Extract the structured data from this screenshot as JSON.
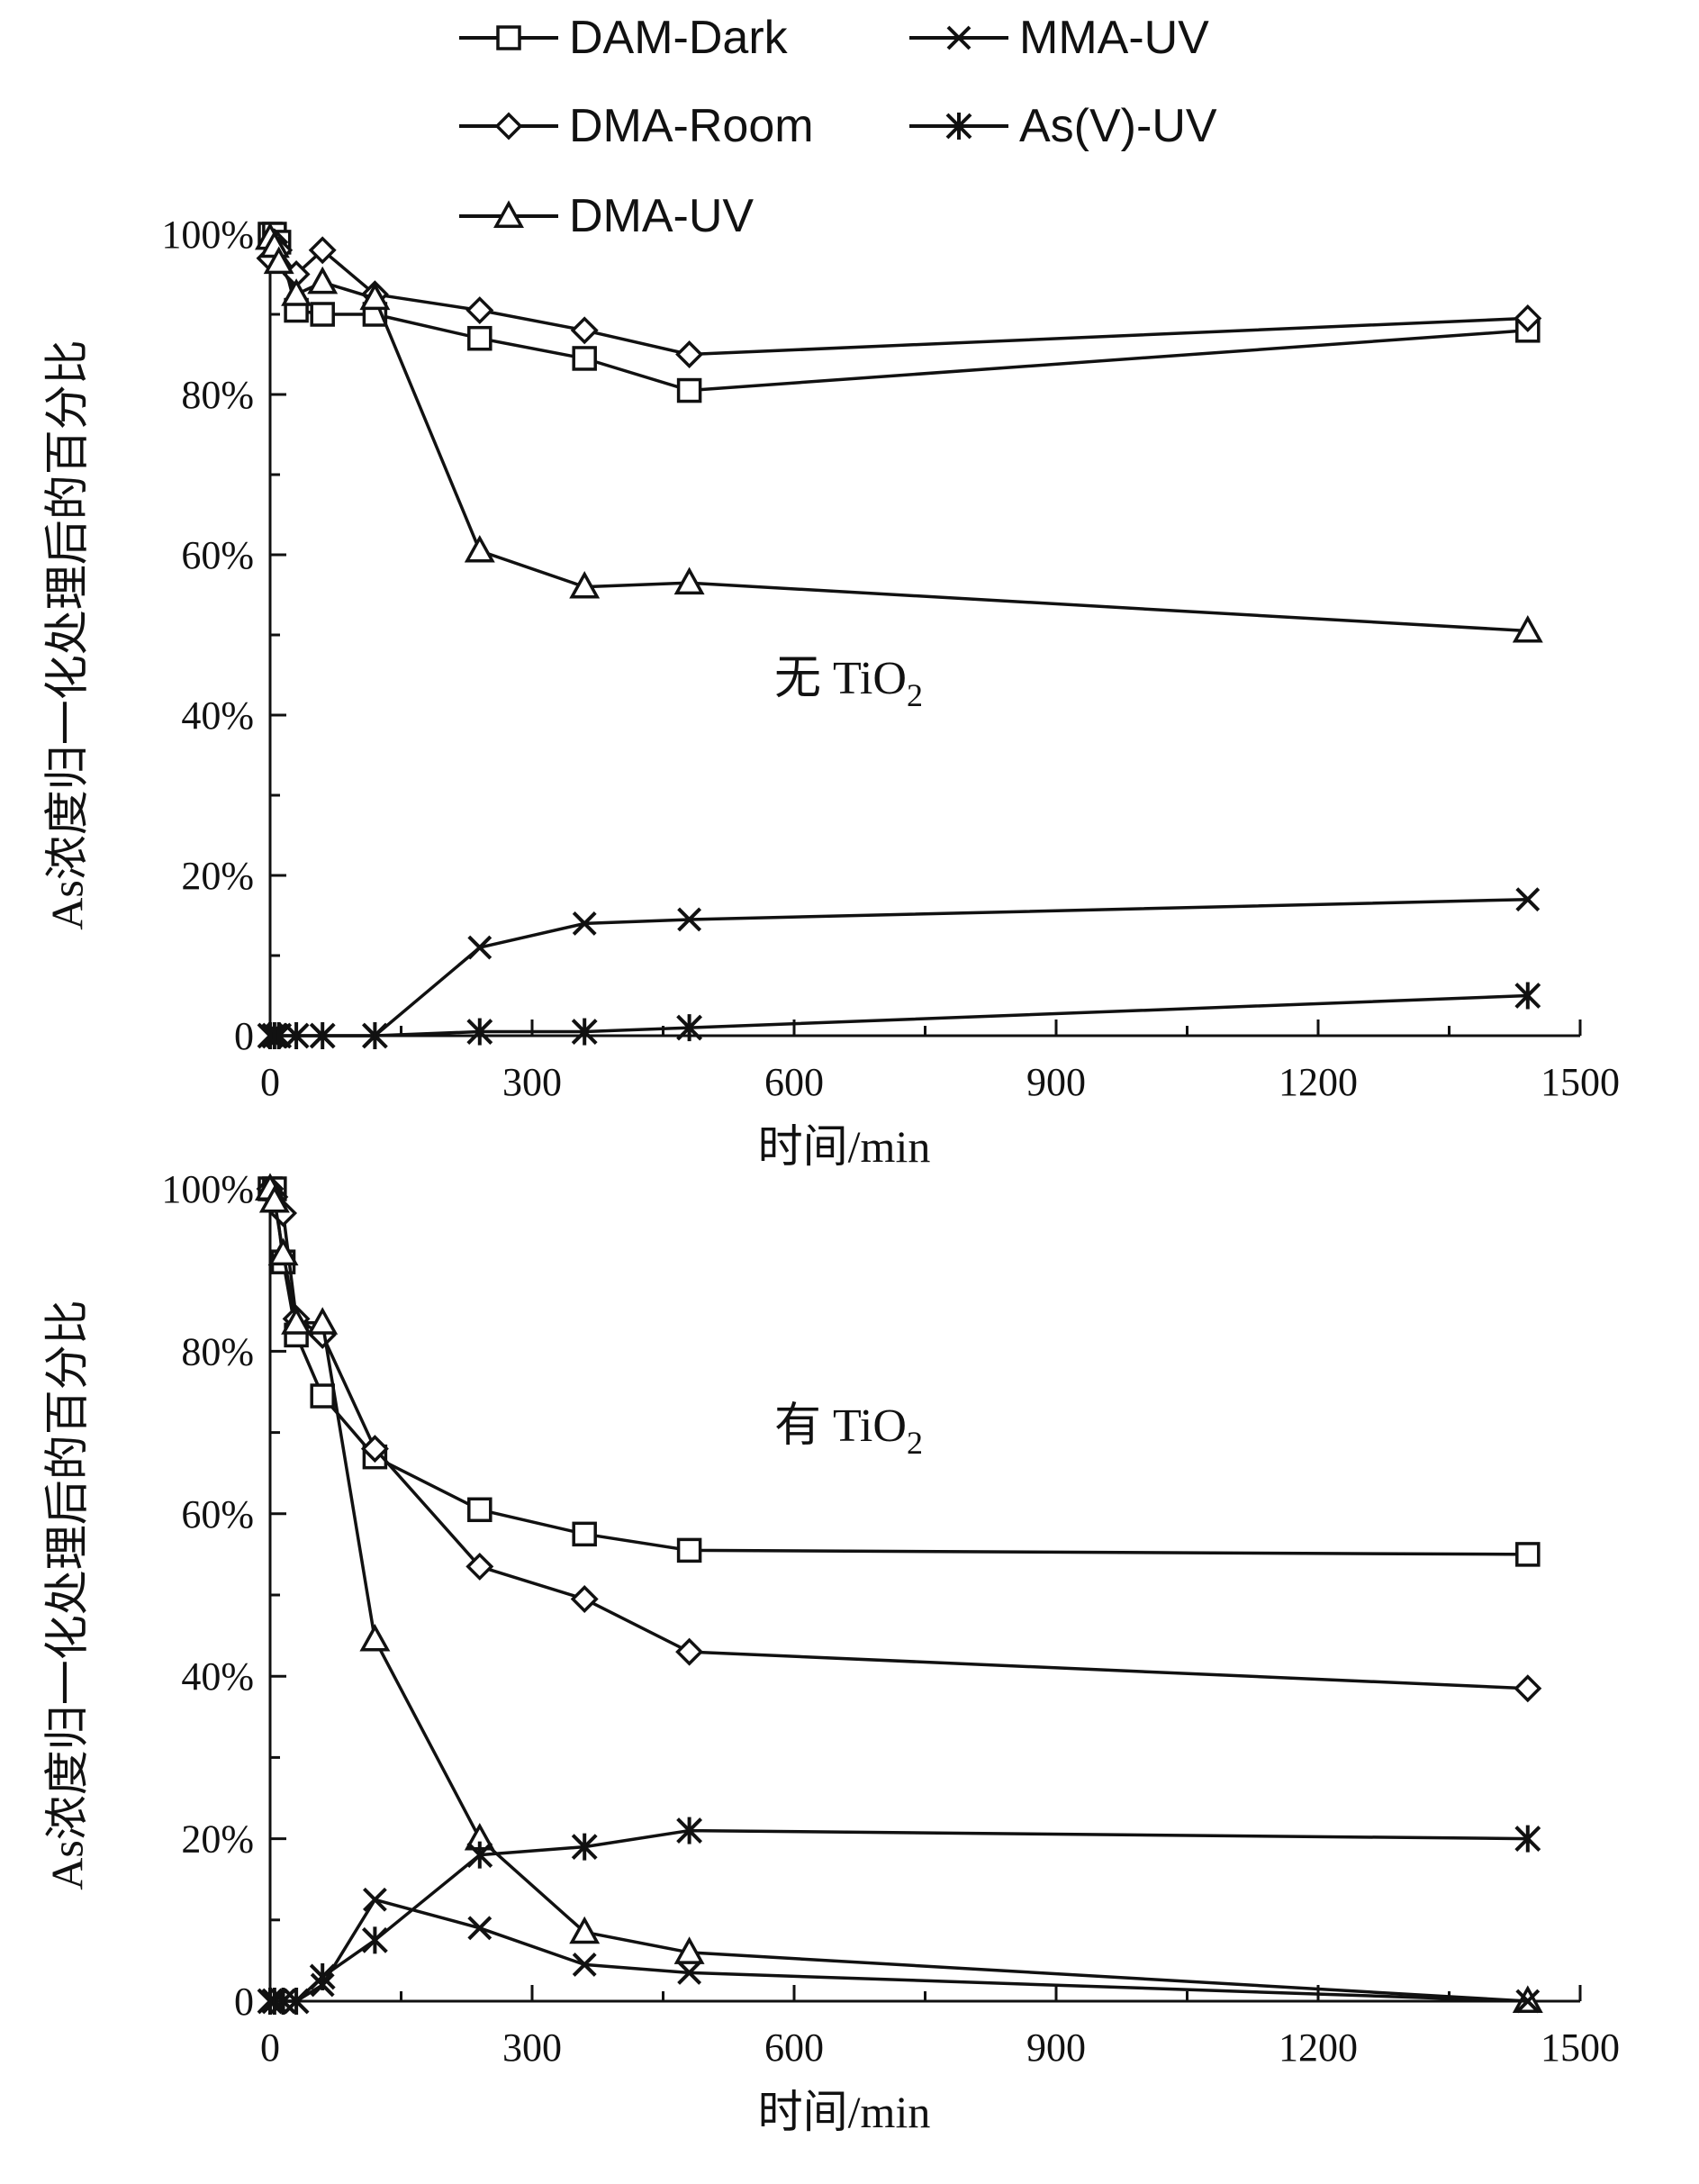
{
  "legend": {
    "items": [
      {
        "label": "DAM-Dark",
        "marker": "square"
      },
      {
        "label": "MMA-UV",
        "marker": "x"
      },
      {
        "label": "DMA-Room",
        "marker": "diamond"
      },
      {
        "label": "As(V)-UV",
        "marker": "asterisk"
      },
      {
        "label": "DMA-UV",
        "marker": "triangle"
      }
    ]
  },
  "colors": {
    "ink": "#111111",
    "background": "#ffffff"
  },
  "chart_data": [
    {
      "type": "line",
      "annotation": {
        "main": "无 TiO",
        "sub": "2"
      },
      "xlabel": "时间/min",
      "ylabel": "As浓度归一化处理后的百分比",
      "xlim": [
        0,
        1500
      ],
      "ylim": [
        0,
        1
      ],
      "x_ticks": [
        0,
        300,
        600,
        900,
        1200,
        1500
      ],
      "x_tick_labels": [
        "0",
        "300",
        "600",
        "900",
        "1200",
        "1500"
      ],
      "y_ticks": [
        0,
        0.2,
        0.4,
        0.6,
        0.8,
        1.0
      ],
      "y_tick_labels": [
        "0",
        "20%",
        "40%",
        "60%",
        "80%",
        "100%"
      ],
      "grid": false,
      "series": [
        {
          "name": "DAM-Dark",
          "marker": "square",
          "x": [
            0,
            5,
            10,
            30,
            60,
            120,
            240,
            360,
            480,
            1440
          ],
          "y": [
            1.0,
            1.0,
            0.99,
            0.905,
            0.9,
            0.9,
            0.87,
            0.845,
            0.805,
            0.88
          ]
        },
        {
          "name": "DMA-Room",
          "marker": "diamond",
          "x": [
            0,
            5,
            10,
            30,
            60,
            120,
            240,
            360,
            480,
            1440
          ],
          "y": [
            0.97,
            0.99,
            0.98,
            0.95,
            0.98,
            0.925,
            0.905,
            0.88,
            0.85,
            0.895
          ]
        },
        {
          "name": "DMA-UV",
          "marker": "triangle",
          "x": [
            0,
            5,
            10,
            30,
            60,
            120,
            240,
            360,
            480,
            1440
          ],
          "y": [
            0.995,
            0.985,
            0.965,
            0.925,
            0.94,
            0.92,
            0.605,
            0.56,
            0.565,
            0.505
          ]
        },
        {
          "name": "MMA-UV",
          "marker": "x",
          "x": [
            0,
            5,
            10,
            30,
            60,
            120,
            240,
            360,
            480,
            1440
          ],
          "y": [
            0,
            0,
            0,
            0,
            0,
            0,
            0.11,
            0.14,
            0.145,
            0.17
          ]
        },
        {
          "name": "As(V)-UV",
          "marker": "asterisk",
          "x": [
            0,
            5,
            10,
            30,
            60,
            120,
            240,
            360,
            480,
            1440
          ],
          "y": [
            0,
            0,
            0,
            0,
            0,
            0,
            0.005,
            0.005,
            0.01,
            0.05
          ]
        }
      ]
    },
    {
      "type": "line",
      "annotation": {
        "main": "有 TiO",
        "sub": "2"
      },
      "xlabel": "时间/min",
      "ylabel": "As浓度归一化处理后的百分比",
      "xlim": [
        0,
        1500
      ],
      "ylim": [
        0,
        1
      ],
      "x_ticks": [
        0,
        300,
        600,
        900,
        1200,
        1500
      ],
      "x_tick_labels": [
        "0",
        "300",
        "600",
        "900",
        "1200",
        "1500"
      ],
      "y_ticks": [
        0,
        0.2,
        0.4,
        0.6,
        0.8,
        1.0
      ],
      "y_tick_labels": [
        "0",
        "20%",
        "40%",
        "60%",
        "80%",
        "100%"
      ],
      "grid": false,
      "series": [
        {
          "name": "DAM-Dark",
          "marker": "square",
          "x": [
            0,
            5,
            15,
            30,
            60,
            120,
            240,
            360,
            480,
            1440
          ],
          "y": [
            1.0,
            1.0,
            0.91,
            0.82,
            0.745,
            0.67,
            0.605,
            0.575,
            0.555,
            0.55
          ]
        },
        {
          "name": "DMA-Room",
          "marker": "diamond",
          "x": [
            0,
            5,
            15,
            30,
            60,
            120,
            240,
            360,
            480,
            1440
          ],
          "y": [
            1.0,
            0.99,
            0.97,
            0.84,
            0.82,
            0.68,
            0.535,
            0.495,
            0.43,
            0.385
          ]
        },
        {
          "name": "DMA-UV",
          "marker": "triangle",
          "x": [
            0,
            5,
            15,
            30,
            60,
            120,
            240,
            360,
            480,
            1440
          ],
          "y": [
            1.0,
            0.985,
            0.92,
            0.835,
            0.835,
            0.445,
            0.2,
            0.085,
            0.06,
            0.0
          ]
        },
        {
          "name": "MMA-UV",
          "marker": "x",
          "x": [
            0,
            5,
            15,
            30,
            60,
            120,
            240,
            360,
            480,
            1440
          ],
          "y": [
            0,
            0,
            0,
            0,
            0.02,
            0.125,
            0.09,
            0.045,
            0.035,
            0.0
          ]
        },
        {
          "name": "As(V)-UV",
          "marker": "asterisk",
          "x": [
            0,
            5,
            15,
            30,
            60,
            120,
            240,
            360,
            480,
            1440
          ],
          "y": [
            0,
            0,
            0,
            0,
            0.03,
            0.075,
            0.18,
            0.19,
            0.21,
            0.2
          ]
        }
      ]
    }
  ]
}
